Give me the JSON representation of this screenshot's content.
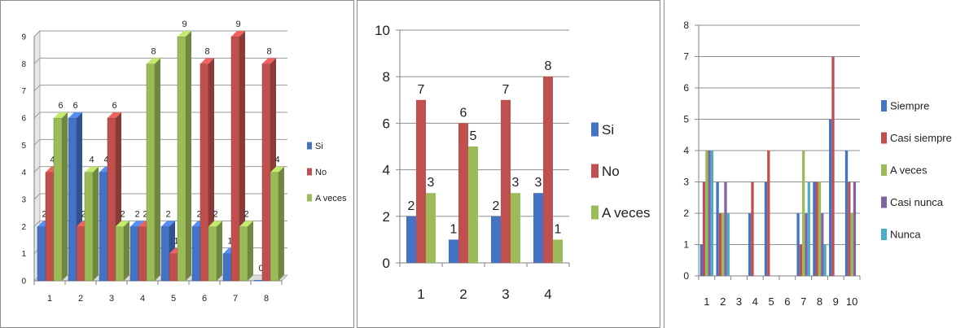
{
  "chart_data": [
    {
      "type": "bar",
      "categories": [
        "1",
        "2",
        "3",
        "4",
        "5",
        "6",
        "7",
        "8"
      ],
      "series": [
        {
          "name": "Si",
          "values": [
            2,
            6,
            4,
            2,
            2,
            2,
            1,
            0
          ],
          "color": "#4472C4"
        },
        {
          "name": "No",
          "values": [
            4,
            2,
            6,
            2,
            1,
            8,
            9,
            8
          ],
          "color": "#C0504D"
        },
        {
          "name": "A veces",
          "values": [
            6,
            4,
            2,
            8,
            9,
            2,
            2,
            4
          ],
          "color": "#9BBB59"
        }
      ],
      "yticks": [
        "0",
        "1",
        "2",
        "3",
        "4",
        "5",
        "6",
        "7",
        "8",
        "9"
      ],
      "ylim": [
        0,
        9
      ],
      "data_labels": true,
      "grid": true,
      "legend": "right",
      "style": "3d-clustered"
    },
    {
      "type": "bar",
      "categories": [
        "1",
        "2",
        "3",
        "4"
      ],
      "series": [
        {
          "name": "Si",
          "values": [
            2,
            1,
            2,
            3
          ],
          "color": "#4472C4"
        },
        {
          "name": "No",
          "values": [
            7,
            6,
            7,
            8
          ],
          "color": "#C0504D"
        },
        {
          "name": "A veces",
          "values": [
            3,
            5,
            3,
            1
          ],
          "color": "#9BBB59"
        }
      ],
      "yticks": [
        "0",
        "2",
        "4",
        "6",
        "8",
        "10"
      ],
      "ylim": [
        0,
        10
      ],
      "data_labels": true,
      "grid": true,
      "legend": "right"
    },
    {
      "type": "bar",
      "categories": [
        "1",
        "2",
        "3",
        "4",
        "5",
        "6",
        "7",
        "8",
        "9",
        "10"
      ],
      "series": [
        {
          "name": "Siempre",
          "values": [
            1,
            3,
            0,
            2,
            3,
            0,
            2,
            3,
            5,
            4
          ],
          "color": "#4472C4"
        },
        {
          "name": "Casi siempre",
          "values": [
            3,
            2,
            0,
            3,
            4,
            0,
            1,
            3,
            7,
            3
          ],
          "color": "#C0504D"
        },
        {
          "name": "A veces",
          "values": [
            4,
            2,
            0,
            0,
            0,
            0,
            4,
            3,
            0,
            2
          ],
          "color": "#9BBB59"
        },
        {
          "name": "Casi nunca",
          "values": [
            4,
            3,
            0,
            0,
            0,
            0,
            2,
            2,
            0,
            3
          ],
          "color": "#8064A2"
        },
        {
          "name": "Nunca",
          "values": [
            4,
            2,
            0,
            0,
            0,
            0,
            3,
            1,
            0,
            0
          ],
          "color": "#4BACC6"
        }
      ],
      "yticks": [
        "0",
        "1",
        "2",
        "3",
        "4",
        "5",
        "6",
        "7",
        "8"
      ],
      "ylim": [
        0,
        8
      ],
      "data_labels": false,
      "grid": true,
      "legend": "right"
    }
  ]
}
